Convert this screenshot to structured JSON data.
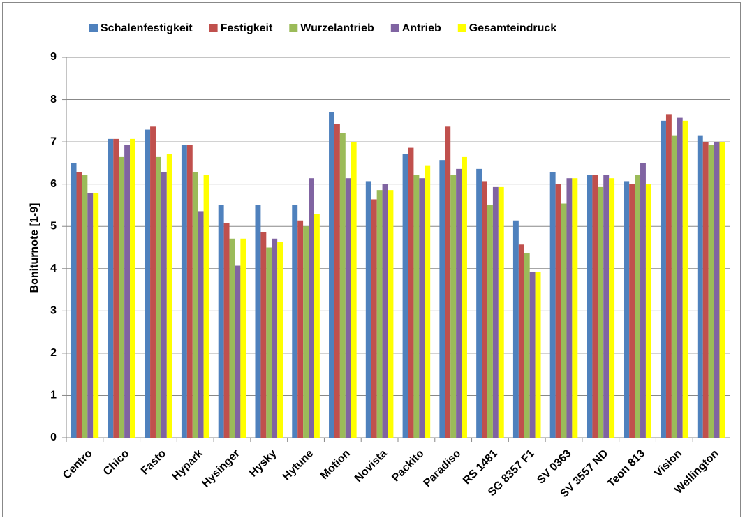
{
  "chart_data": {
    "type": "bar",
    "y_label": "Boniturnote [1-9]",
    "categories": [
      "Centro",
      "Chico",
      "Fasto",
      "Hypark",
      "Hysinger",
      "Hysky",
      "Hytune",
      "Motion",
      "Novista",
      "Packito",
      "Paradiso",
      "RS 1481",
      "SG 8357 F1",
      "SV 0363",
      "SV 3557 ND",
      "Teon 813",
      "Vision",
      "Wellington"
    ],
    "series": [
      {
        "name": "Schalenfestigkeit",
        "color": "#4f81bd",
        "values": [
          6.5,
          7.07,
          7.29,
          6.93,
          5.5,
          5.5,
          5.5,
          7.71,
          6.07,
          6.71,
          6.57,
          6.36,
          5.14,
          6.29,
          6.21,
          6.07,
          7.5,
          7.14
        ]
      },
      {
        "name": "Festigkeit",
        "color": "#c0504d",
        "values": [
          6.29,
          7.07,
          7.36,
          6.93,
          5.07,
          4.86,
          5.14,
          7.43,
          5.64,
          6.86,
          7.36,
          6.07,
          4.57,
          6.0,
          6.21,
          6.0,
          7.64,
          7.0
        ]
      },
      {
        "name": "Wurzelantrieb",
        "color": "#9bbb59",
        "values": [
          6.21,
          6.64,
          6.64,
          6.29,
          4.71,
          4.5,
          5.0,
          7.21,
          5.86,
          6.21,
          6.21,
          5.5,
          4.36,
          5.54,
          5.93,
          6.21,
          7.14,
          6.93
        ]
      },
      {
        "name": "Antrieb",
        "color": "#8064a2",
        "values": [
          5.79,
          6.93,
          6.29,
          5.36,
          4.07,
          4.71,
          6.14,
          6.14,
          6.0,
          6.14,
          6.36,
          5.93,
          3.93,
          6.14,
          6.21,
          6.5,
          7.57,
          7.0
        ]
      },
      {
        "name": "Gesamteindruck",
        "color": "#ffff00",
        "values": [
          5.79,
          7.07,
          6.71,
          6.21,
          4.71,
          4.64,
          5.29,
          7.0,
          5.86,
          6.43,
          6.64,
          5.93,
          3.93,
          6.14,
          6.14,
          6.0,
          7.5,
          7.0
        ]
      }
    ],
    "ylim": [
      0,
      9
    ],
    "yticks": [
      0,
      1,
      2,
      3,
      4,
      5,
      6,
      7,
      8,
      9
    ],
    "grid": true
  }
}
